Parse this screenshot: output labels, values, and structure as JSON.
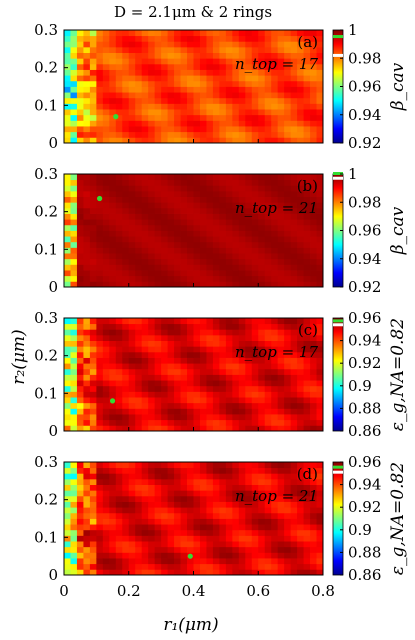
{
  "figure": {
    "title": "D = 2.1μm & 2 rings",
    "xlabel": "r₁(μm)",
    "ylabel": "r₂(μm)"
  },
  "chart_data": [
    {
      "type": "heatmap",
      "panel": "(a)",
      "annotation": "n_top = 17",
      "x_range": [
        0,
        0.8
      ],
      "y_range": [
        0,
        0.3
      ],
      "x_ticks": [
        "0",
        "0.2",
        "0.4",
        "0.6",
        "0.8"
      ],
      "y_ticks": [
        "0",
        "0.1",
        "0.2",
        "0.3"
      ],
      "colorbar": {
        "label": "β_cav",
        "ticks": [
          "0.92",
          "0.94",
          "0.96",
          "0.98",
          "1"
        ],
        "range": [
          0.92,
          1.0
        ],
        "marker_green": 0.995,
        "marker_white": 0.982
      },
      "optimum": {
        "x": 0.16,
        "y": 0.07
      },
      "typical_value": 0.985
    },
    {
      "type": "heatmap",
      "panel": "(b)",
      "annotation": "n_top = 21",
      "x_range": [
        0,
        0.8
      ],
      "y_range": [
        0,
        0.3
      ],
      "x_ticks": [
        "0",
        "0.2",
        "0.4",
        "0.6",
        "0.8"
      ],
      "y_ticks": [
        "0",
        "0.1",
        "0.2",
        "0.3"
      ],
      "colorbar": {
        "label": "β_cav",
        "ticks": [
          "0.92",
          "0.94",
          "0.96",
          "0.98",
          "1"
        ],
        "range": [
          0.92,
          1.0
        ],
        "marker_green": 1.0,
        "marker_white": 0.997
      },
      "optimum": {
        "x": 0.11,
        "y": 0.235
      },
      "typical_value": 0.997
    },
    {
      "type": "heatmap",
      "panel": "(c)",
      "annotation": "n_top = 17",
      "x_range": [
        0,
        0.8
      ],
      "y_range": [
        0,
        0.3
      ],
      "x_ticks": [
        "0",
        "0.2",
        "0.4",
        "0.6",
        "0.8"
      ],
      "y_ticks": [
        "0",
        "0.1",
        "0.2",
        "0.3"
      ],
      "colorbar": {
        "label": "ε_g,NA=0.82",
        "ticks": [
          "0.86",
          "0.88",
          "0.9",
          "0.92",
          "0.94",
          "0.96"
        ],
        "range": [
          0.86,
          0.96
        ],
        "marker_green": 0.957,
        "marker_white": 0.954
      },
      "optimum": {
        "x": 0.15,
        "y": 0.08
      },
      "typical_value": 0.95
    },
    {
      "type": "heatmap",
      "panel": "(d)",
      "annotation": "n_top = 21",
      "x_range": [
        0,
        0.8
      ],
      "y_range": [
        0,
        0.3
      ],
      "x_ticks": [
        "0",
        "0.2",
        "0.4",
        "0.6",
        "0.8"
      ],
      "y_ticks": [
        "0",
        "0.1",
        "0.2",
        "0.3"
      ],
      "colorbar": {
        "label": "ε_g,NA=0.82",
        "ticks": [
          "0.86",
          "0.88",
          "0.9",
          "0.92",
          "0.94",
          "0.96"
        ],
        "range": [
          0.86,
          0.96
        ],
        "marker_green": 0.955,
        "marker_white": 0.951
      },
      "optimum": {
        "x": 0.39,
        "y": 0.05
      },
      "typical_value": 0.95
    }
  ]
}
